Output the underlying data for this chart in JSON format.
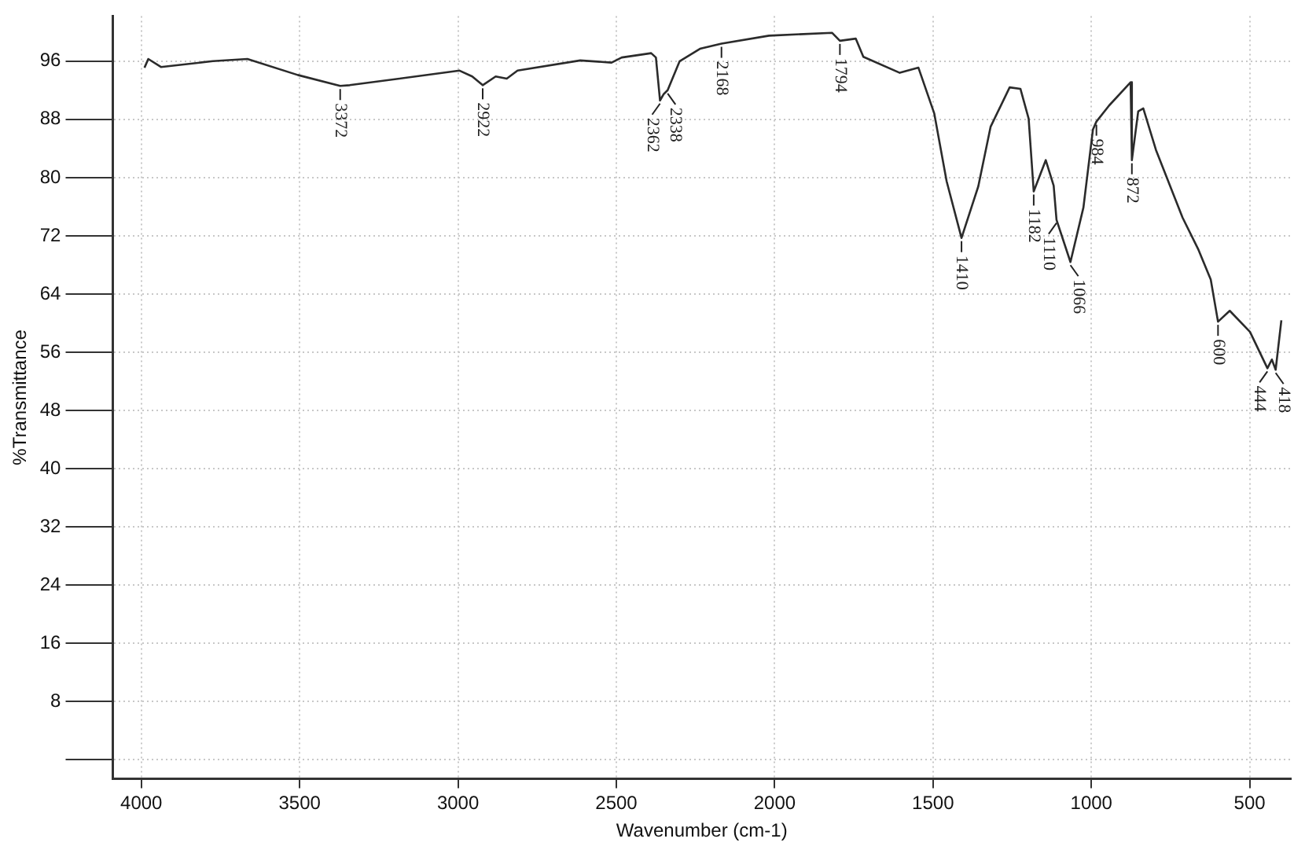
{
  "chart_data": {
    "type": "line",
    "xlabel": "Wavenumber (cm-1)",
    "ylabel": "%Transmittance",
    "xlim": [
      4090,
      370
    ],
    "xticks": [
      4000,
      3500,
      3000,
      2500,
      2000,
      1500,
      1000,
      500
    ],
    "ylim": [
      -2.6,
      102.2
    ],
    "yticks": [
      {
        "value": 0,
        "label": null
      },
      8,
      16,
      24,
      32,
      40,
      48,
      56,
      64,
      72,
      80,
      88,
      96
    ],
    "grid": true,
    "legend": false,
    "marker": "none",
    "line_style": "solid",
    "series": [
      {
        "color": "#2b2b2b",
        "x": [
          3990,
          3978,
          3938,
          3774,
          3665,
          3506,
          3372,
          3342,
          2995,
          2955,
          2922,
          2881,
          2846,
          2812,
          2614,
          2515,
          2483,
          2390,
          2375,
          2362,
          2350,
          2338,
          2300,
          2236,
          2168,
          2018,
          1819,
          1794,
          1744,
          1720,
          1605,
          1546,
          1496,
          1457,
          1410,
          1357,
          1318,
          1258,
          1224,
          1198,
          1182,
          1144,
          1119,
          1110,
          1066,
          1025,
          995,
          984,
          944,
          876,
          872,
          852,
          836,
          796,
          712,
          663,
          623,
          600,
          563,
          499,
          444,
          430,
          418,
          400
        ],
        "values": [
          95.1,
          96.3,
          95.2,
          96.0,
          96.3,
          94.1,
          92.6,
          92.7,
          94.7,
          93.9,
          92.7,
          93.9,
          93.6,
          94.7,
          96.1,
          95.8,
          96.5,
          97.1,
          96.5,
          90.6,
          91.5,
          92.0,
          96.0,
          97.7,
          98.4,
          99.5,
          99.9,
          98.8,
          99.1,
          96.6,
          94.4,
          95.1,
          88.8,
          79.5,
          71.7,
          78.8,
          87.0,
          92.4,
          92.2,
          88.1,
          78.1,
          82.4,
          78.9,
          74.2,
          68.4,
          75.9,
          86.6,
          87.7,
          89.9,
          93.1,
          82.4,
          89.1,
          89.5,
          83.8,
          74.5,
          70.2,
          66.0,
          60.2,
          61.7,
          58.8,
          53.8,
          55.0,
          53.6,
          60.4
        ]
      }
    ],
    "annotations": [
      {
        "text": "3372",
        "x": 3372,
        "y": 92.6
      },
      {
        "text": "2922",
        "x": 2922,
        "y": 92.7
      },
      {
        "text": "2362",
        "x": 2362,
        "y": 90.6
      },
      {
        "text": "2338",
        "x": 2338,
        "y": 92.0
      },
      {
        "text": "2168",
        "x": 2168,
        "y": 98.4
      },
      {
        "text": "1794",
        "x": 1794,
        "y": 98.8
      },
      {
        "text": "1410",
        "x": 1410,
        "y": 71.7
      },
      {
        "text": "1182",
        "x": 1182,
        "y": 78.1
      },
      {
        "text": "1110",
        "x": 1110,
        "y": 74.2
      },
      {
        "text": "1066",
        "x": 1066,
        "y": 68.4
      },
      {
        "text": "984",
        "x": 984,
        "y": 87.7
      },
      {
        "text": "872",
        "x": 872,
        "y": 82.4
      },
      {
        "text": "600",
        "x": 600,
        "y": 60.2
      },
      {
        "text": "444",
        "x": 444,
        "y": 53.8
      },
      {
        "text": "418",
        "x": 418,
        "y": 53.6
      }
    ]
  }
}
